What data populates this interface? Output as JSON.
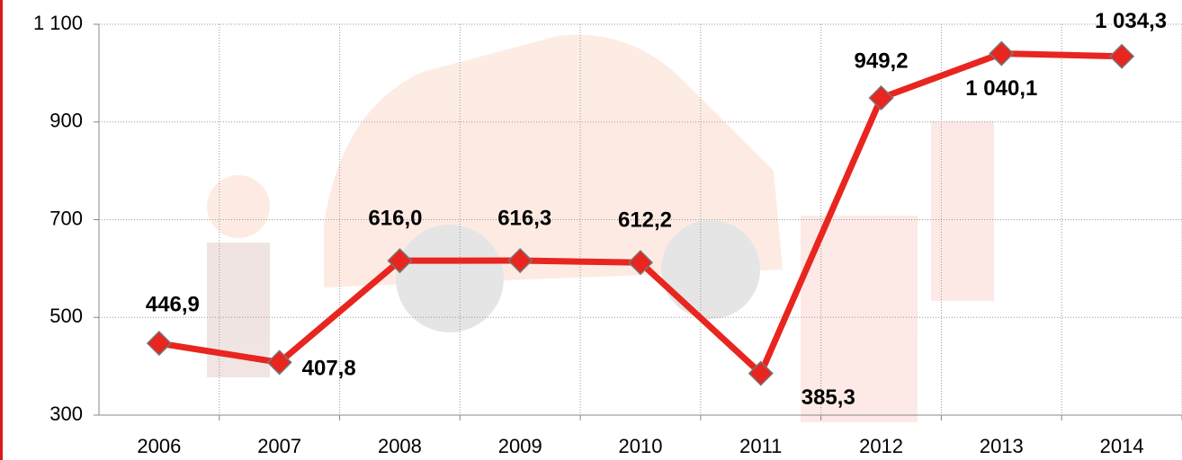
{
  "chart_data": {
    "type": "line",
    "categories": [
      "2006",
      "2007",
      "2008",
      "2009",
      "2010",
      "2011",
      "2012",
      "2013",
      "2014"
    ],
    "values": [
      446.9,
      407.8,
      616.0,
      616.3,
      612.2,
      385.3,
      949.2,
      1040.1,
      1034.3
    ],
    "value_labels": [
      "446,9",
      "407,8",
      "616,0",
      "616,3",
      "612,2",
      "385,3",
      "949,2",
      "1 040,1",
      "1 034,3"
    ],
    "color": "#e8251f",
    "ylim": [
      300,
      1100
    ],
    "yticks": [
      300,
      500,
      700,
      900,
      {
        "value": 1100,
        "label": "1 100"
      }
    ],
    "grid": true
  }
}
